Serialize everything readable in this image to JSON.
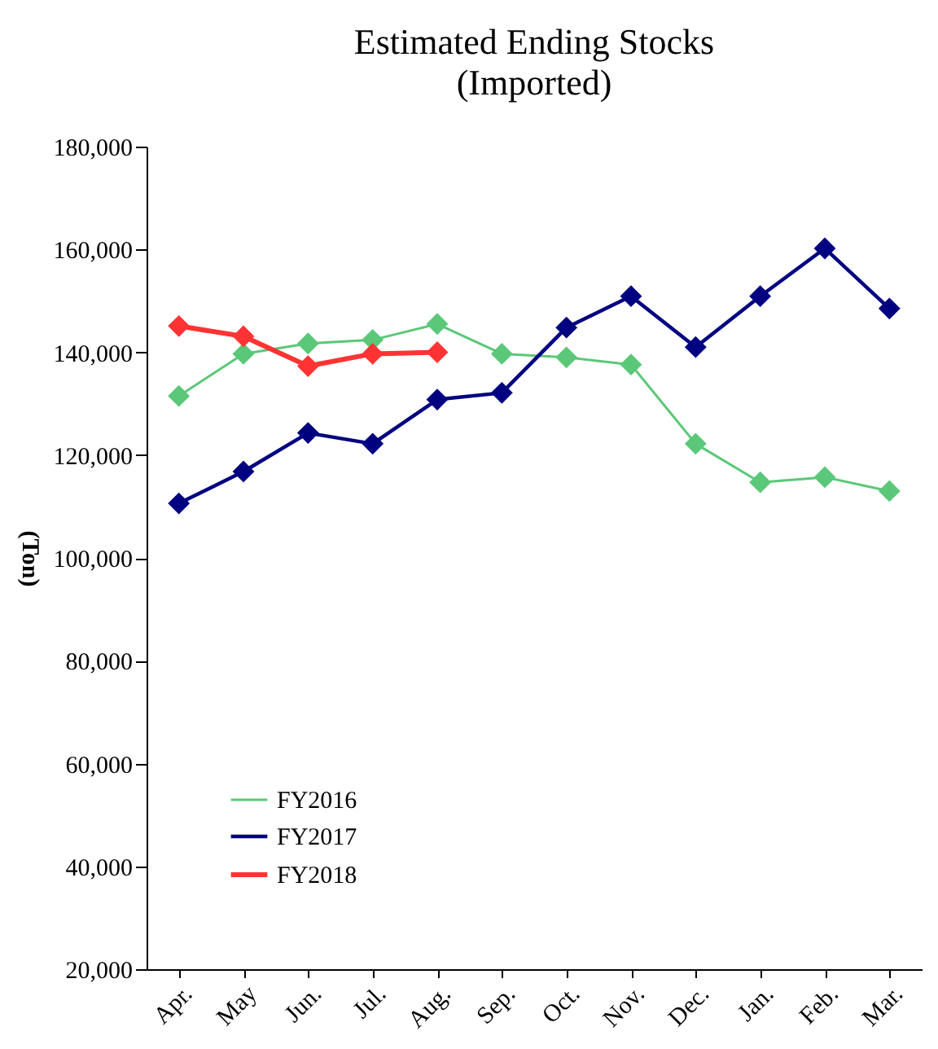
{
  "chart_data": {
    "type": "line",
    "title": "Estimated Ending Stocks",
    "subtitle": "(Imported)",
    "ylabel": "(Ton)",
    "categories": [
      "Apr.",
      "May",
      "Jun.",
      "Jul.",
      "Aug.",
      "Sep.",
      "Oct.",
      "Nov.",
      "Dec.",
      "Jan.",
      "Feb.",
      "Mar."
    ],
    "series": [
      {
        "name": "FY2016",
        "color": "#5ac878",
        "values": [
          131500,
          139700,
          141700,
          142400,
          145500,
          139700,
          139000,
          137600,
          122200,
          114700,
          115700,
          113000
        ]
      },
      {
        "name": "FY2017",
        "color": "#000080",
        "values": [
          110600,
          116800,
          124300,
          122200,
          130800,
          132100,
          144800,
          150900,
          141000,
          150900,
          160200,
          148500
        ]
      },
      {
        "name": "FY2018",
        "color": "#ff3333",
        "values": [
          145100,
          143100,
          137300,
          139700,
          140000,
          null,
          null,
          null,
          null,
          null,
          null,
          null
        ]
      }
    ],
    "ylim": [
      20000,
      180000
    ],
    "yticks": [
      {
        "value": 20000,
        "label": "20,000"
      },
      {
        "value": 40000,
        "label": "40,000"
      },
      {
        "value": 60000,
        "label": "60,000"
      },
      {
        "value": 80000,
        "label": "80,000"
      },
      {
        "value": 100000,
        "label": "100,000"
      },
      {
        "value": 120000,
        "label": "120,000"
      },
      {
        "value": 140000,
        "label": "140,000"
      },
      {
        "value": 160000,
        "label": "160,000"
      },
      {
        "value": 180000,
        "label": "180,000"
      }
    ],
    "grid": false,
    "legend": "bottom left",
    "marker": "diamond",
    "line_style": "solid"
  }
}
